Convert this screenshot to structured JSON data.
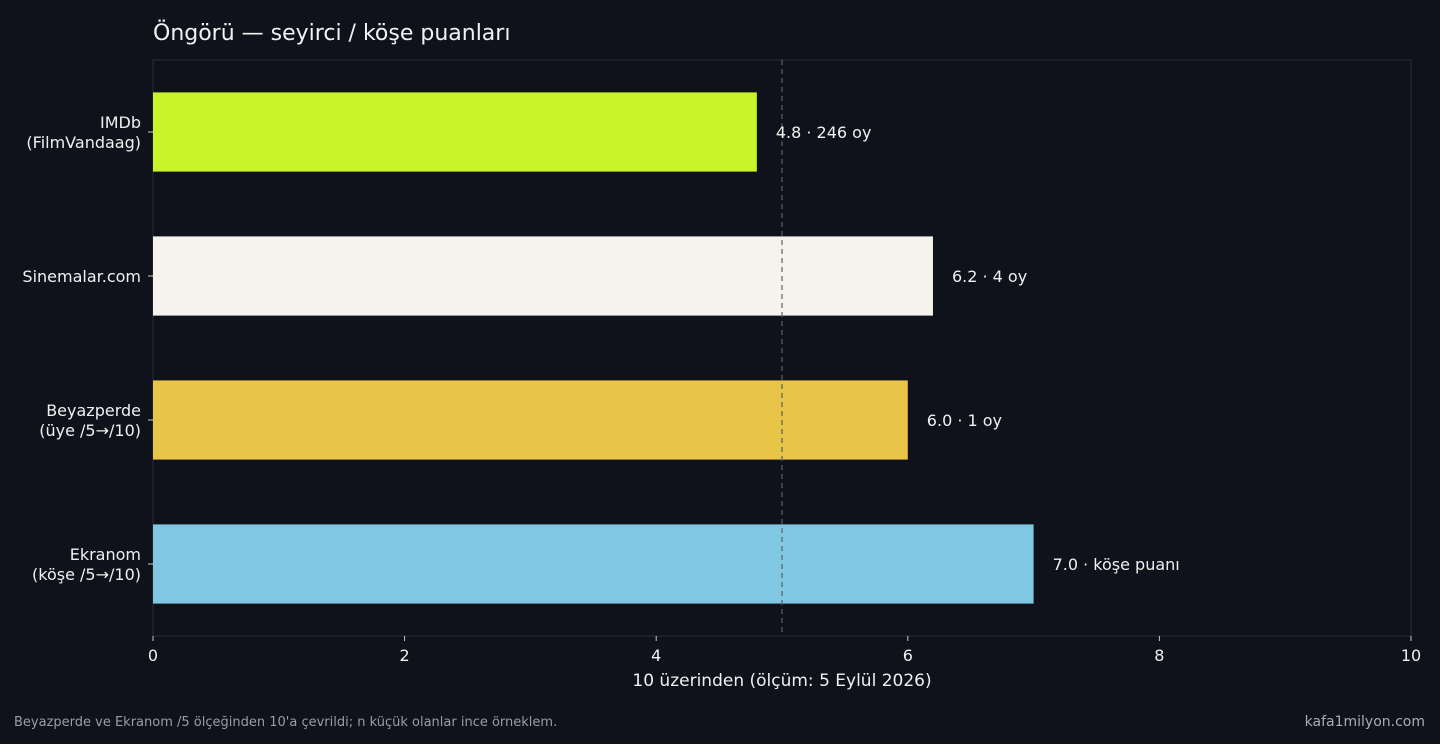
{
  "chart_data": {
    "type": "bar",
    "orientation": "horizontal",
    "title": "Öngörü — seyirci / köşe puanları",
    "xlabel": "10 üzerinden (ölçüm: 5 Eylül 2026)",
    "xlim": [
      0,
      10
    ],
    "xticks": [
      0,
      2,
      4,
      6,
      8,
      10
    ],
    "reference_line": 5,
    "grid": false,
    "categories": [
      [
        "IMDb",
        "(FilmVandaag)"
      ],
      [
        "Sinemalar.com"
      ],
      [
        "Beyazperde",
        "(üye /5→/10)"
      ],
      [
        "Ekranom",
        "(köşe /5→/10)"
      ]
    ],
    "values": [
      4.8,
      6.2,
      6.0,
      7.0
    ],
    "data_labels": [
      "4.8 · 246 oy",
      "6.2 · 4 oy",
      "6.0 · 1 oy",
      "7.0 · köşe puanı"
    ],
    "colors": [
      "#c8f52a",
      "#f5f3ec",
      "#e8c447",
      "#7fc7e3"
    ]
  },
  "footer": {
    "note": "Beyazperde ve Ekranom /5 ölçeğinden 10'a çevrildi; n küçük olanlar ince örneklem.",
    "brand": "kafa1milyon.com"
  },
  "theme": {
    "background": "#0f121a",
    "axis": "#2b2f38",
    "refline": "#5a5e68"
  }
}
